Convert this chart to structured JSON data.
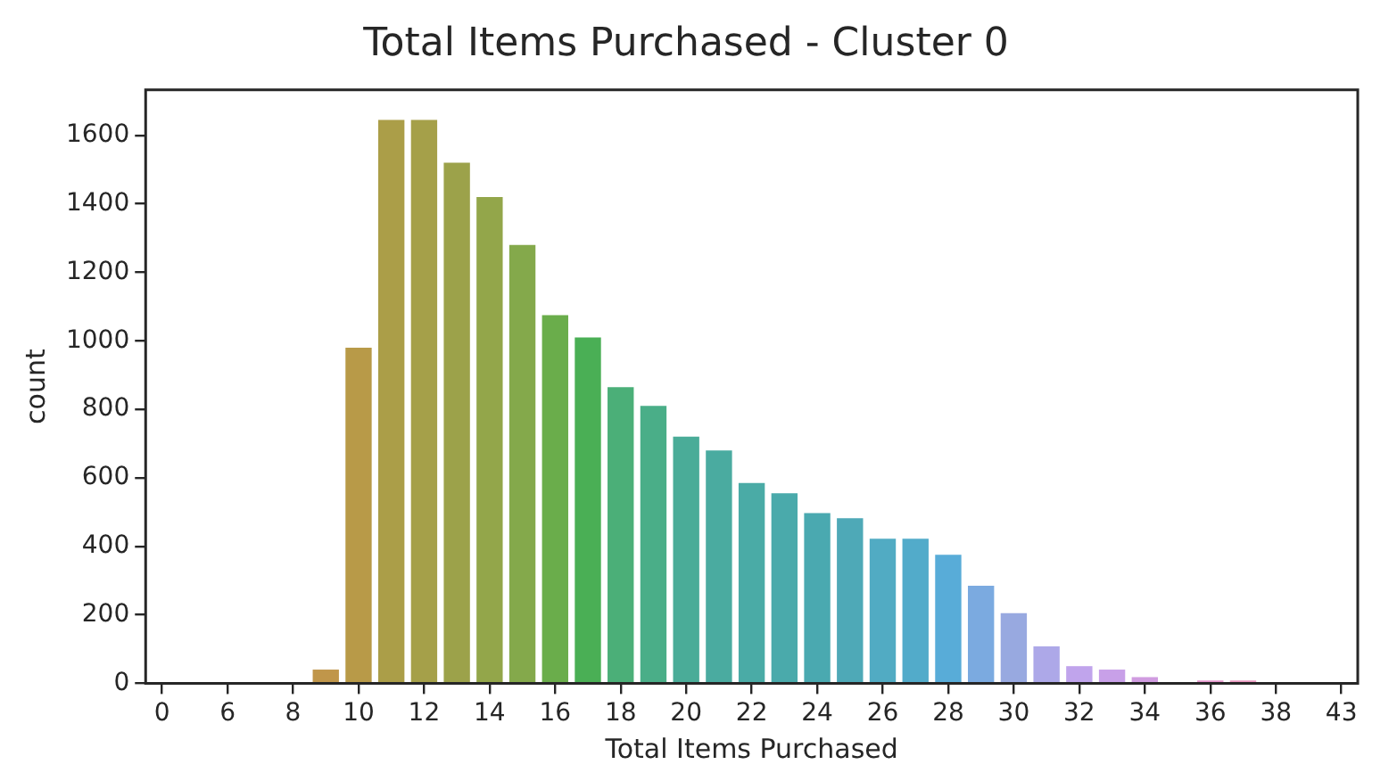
{
  "chart_data": {
    "type": "bar",
    "title": "Total Items Purchased - Cluster 0",
    "xlabel": "Total Items Purchased",
    "ylabel": "count",
    "categories": [
      "0",
      null,
      "6",
      null,
      "8",
      null,
      "10",
      null,
      "12",
      null,
      "14",
      null,
      "16",
      null,
      "18",
      null,
      "20",
      null,
      "22",
      null,
      "24",
      null,
      "26",
      null,
      "28",
      null,
      "30",
      null,
      "32",
      null,
      "34",
      null,
      "36",
      null,
      "38",
      null,
      "43"
    ],
    "values": [
      0,
      0,
      0,
      0,
      0,
      40,
      980,
      1645,
      1645,
      1520,
      1420,
      1280,
      1075,
      1010,
      865,
      810,
      720,
      680,
      585,
      555,
      497,
      482,
      422,
      422,
      375,
      285,
      205,
      108,
      50,
      40,
      18,
      null,
      8,
      8,
      0,
      0,
      0
    ],
    "colors": [
      "#f77189",
      "#f5727c",
      "#ee7d57",
      "#df8b40",
      "#cc9340",
      "#c0964a",
      "#b89a48",
      "#ab9e48",
      "#a5a049",
      "#9ca24a",
      "#93a64a",
      "#84a94b",
      "#6aad4b",
      "#4aaf55",
      "#4baf78",
      "#4aae88",
      "#4aac98",
      "#4aaba0",
      "#4aaba6",
      "#4aaaab",
      "#4aa9b0",
      "#4ea9b7",
      "#51abc3",
      "#52abca",
      "#58acd8",
      "#7baae0",
      "#98a9e0",
      "#ada8e8",
      "#c0a4ec",
      "#c8a0e8",
      "#d09ce0",
      "#dc96d8",
      "#e496cc",
      "#ea98c0",
      "#eea0b0",
      "#f29aa4",
      "#f59498"
    ],
    "ylim": [
      0,
      1733
    ],
    "yticks": [
      0,
      200,
      400,
      600,
      800,
      1000,
      1200,
      1400,
      1600
    ],
    "grid": false,
    "legend": false
  }
}
